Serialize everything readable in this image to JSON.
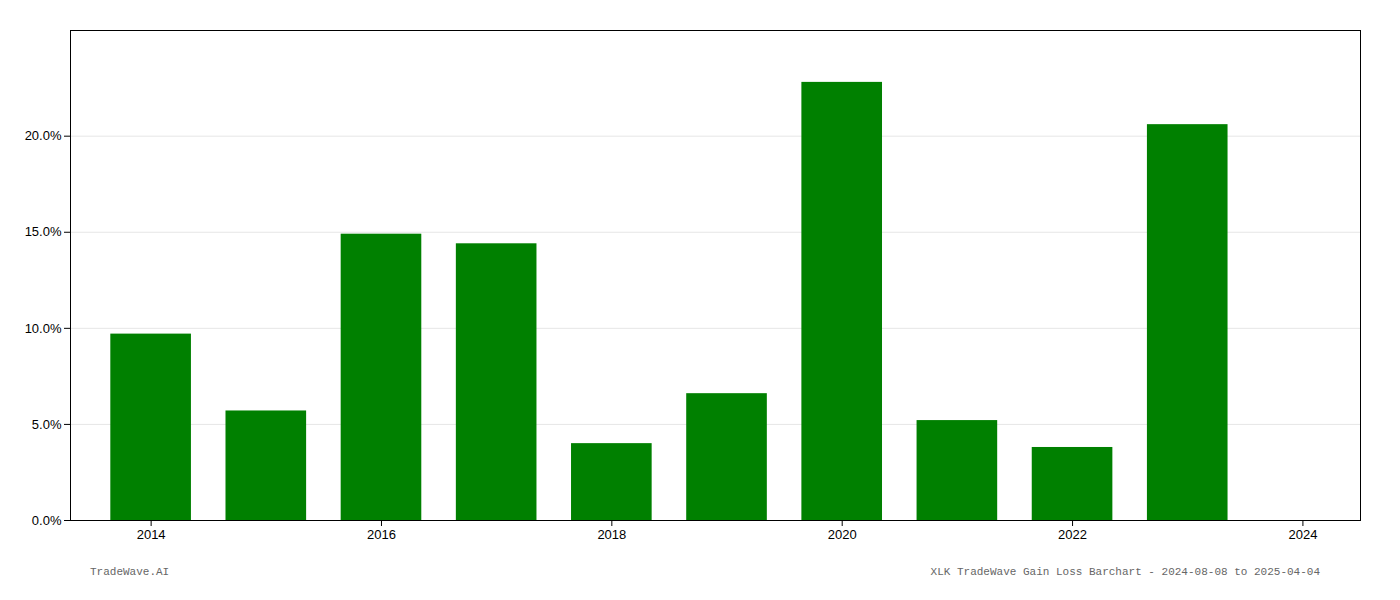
{
  "chart_data": {
    "type": "bar",
    "x": [
      2014,
      2015,
      2016,
      2017,
      2018,
      2019,
      2020,
      2021,
      2022,
      2023
    ],
    "values": [
      0.097,
      0.057,
      0.149,
      0.144,
      0.04,
      0.066,
      0.228,
      0.052,
      0.038,
      0.206
    ],
    "color": "#008000",
    "xlim": [
      2013.3,
      2024.5
    ],
    "xticks": [
      2014,
      2016,
      2018,
      2020,
      2022,
      2024
    ],
    "ylim": [
      0,
      0.255
    ],
    "yticks": [
      {
        "value": 0.0,
        "label": "0.0%"
      },
      {
        "value": 0.05,
        "label": "5.0%"
      },
      {
        "value": 0.1,
        "label": "10.0%"
      },
      {
        "value": 0.15,
        "label": "15.0%"
      },
      {
        "value": 0.2,
        "label": "20.0%"
      }
    ],
    "grid": true,
    "annotations": [
      "TradeWave.AI",
      "XLK TradeWave Gain Loss Barchart - 2024-08-08 to 2025-04-04"
    ]
  }
}
